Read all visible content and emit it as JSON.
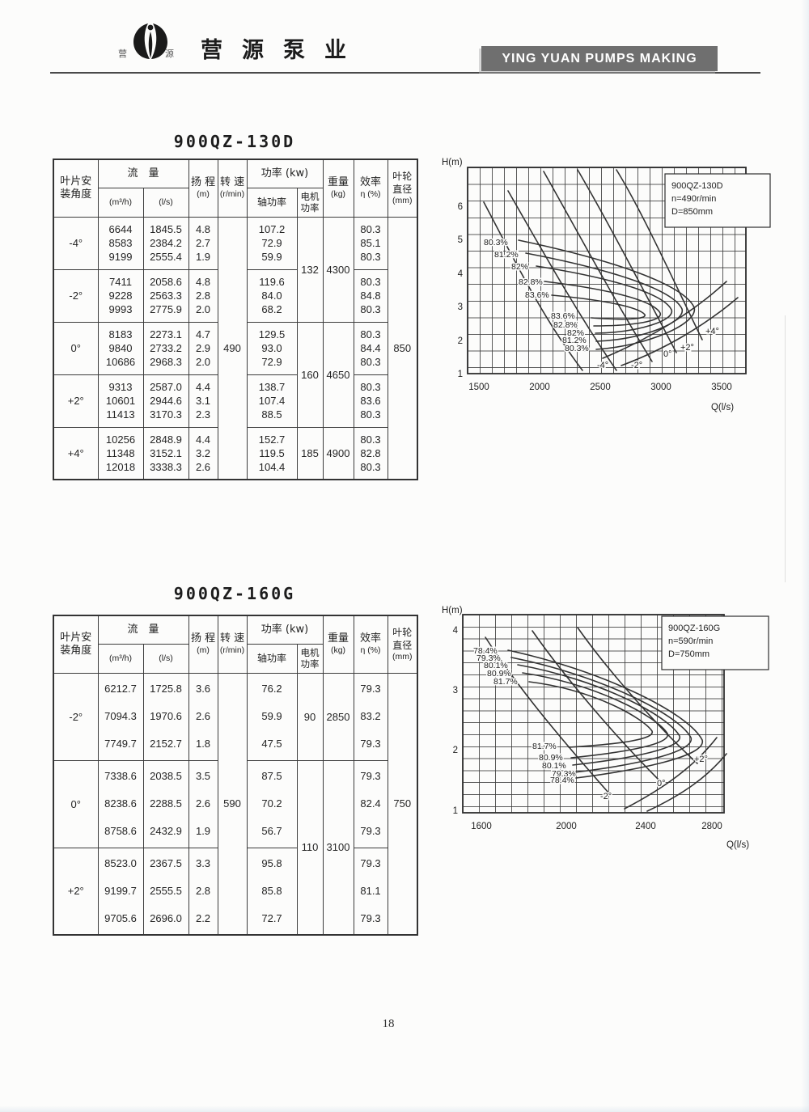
{
  "page": {
    "number": "18"
  },
  "header": {
    "logo": {
      "small_left": "营",
      "small_right": "源"
    },
    "company_name": "营源泵业",
    "banner": "YING YUAN PUMPS MAKING",
    "banner_bg": "#6f6f6f"
  },
  "column_headers": {
    "angle_l1": "叶片安",
    "angle_l2": "装角度",
    "flow": "流　量",
    "flow_m3h": "(m³/h)",
    "flow_ls": "(l/s)",
    "head_l1": "扬 程",
    "head_l2": "(m)",
    "speed_l1": "转 速",
    "speed_l2": "(r/min)",
    "power": "功率 (kw)",
    "shaft": "轴功率",
    "motor_l1": "电机",
    "motor_l2": "功率",
    "weight_l1": "重量",
    "weight_l2": "(kg)",
    "eff_l1": "效率",
    "eff_l2": "η (%)",
    "imp_l1": "叶轮",
    "imp_l2": "直径",
    "imp_l3": "(mm)"
  },
  "tables": [
    {
      "title": "900QZ-130D",
      "speed": "490",
      "impeller": "850",
      "groups": [
        {
          "angle": "-4°",
          "m3h": [
            "6644",
            "8583",
            "9199"
          ],
          "ls": [
            "1845.5",
            "2384.2",
            "2555.4"
          ],
          "head": [
            "4.8",
            "2.7",
            "1.9"
          ],
          "shaft": [
            "107.2",
            "72.9",
            "59.9"
          ],
          "eff": [
            "80.3",
            "85.1",
            "80.3"
          ]
        },
        {
          "angle": "-2°",
          "m3h": [
            "7411",
            "9228",
            "9993"
          ],
          "ls": [
            "2058.6",
            "2563.3",
            "2775.9"
          ],
          "head": [
            "4.8",
            "2.8",
            "2.0"
          ],
          "shaft": [
            "119.6",
            "84.0",
            "68.2"
          ],
          "eff": [
            "80.3",
            "84.8",
            "80.3"
          ]
        },
        {
          "angle": "0°",
          "m3h": [
            "8183",
            "9840",
            "10686"
          ],
          "ls": [
            "2273.1",
            "2733.2",
            "2968.3"
          ],
          "head": [
            "4.7",
            "2.9",
            "2.0"
          ],
          "shaft": [
            "129.5",
            "93.0",
            "72.9"
          ],
          "eff": [
            "80.3",
            "84.4",
            "80.3"
          ]
        },
        {
          "angle": "+2°",
          "m3h": [
            "9313",
            "10601",
            "11413"
          ],
          "ls": [
            "2587.0",
            "2944.6",
            "3170.3"
          ],
          "head": [
            "4.4",
            "3.1",
            "2.3"
          ],
          "shaft": [
            "138.7",
            "107.4",
            "88.5"
          ],
          "eff": [
            "80.3",
            "83.6",
            "80.3"
          ]
        },
        {
          "angle": "+4°",
          "m3h": [
            "10256",
            "11348",
            "12018"
          ],
          "ls": [
            "2848.9",
            "3152.1",
            "3338.3"
          ],
          "head": [
            "4.4",
            "3.2",
            "2.6"
          ],
          "shaft": [
            "152.7",
            "119.5",
            "104.4"
          ],
          "eff": [
            "80.3",
            "82.8",
            "80.3"
          ]
        }
      ],
      "motor_weight": [
        {
          "motor": "132",
          "weight": "4300"
        },
        {
          "motor": "160",
          "weight": "4650"
        },
        {
          "motor": "185",
          "weight": "4900"
        }
      ]
    },
    {
      "title": "900QZ-160G",
      "speed": "590",
      "impeller": "750",
      "groups": [
        {
          "angle": "-2°",
          "m3h": [
            "6212.7",
            "7094.3",
            "7749.7"
          ],
          "ls": [
            "1725.8",
            "1970.6",
            "2152.7"
          ],
          "head": [
            "3.6",
            "2.6",
            "1.8"
          ],
          "shaft": [
            "76.2",
            "59.9",
            "47.5"
          ],
          "eff": [
            "79.3",
            "83.2",
            "79.3"
          ]
        },
        {
          "angle": "0°",
          "m3h": [
            "7338.6",
            "8238.6",
            "8758.6"
          ],
          "ls": [
            "2038.5",
            "2288.5",
            "2432.9"
          ],
          "head": [
            "3.5",
            "2.6",
            "1.9"
          ],
          "shaft": [
            "87.5",
            "70.2",
            "56.7"
          ],
          "eff": [
            "79.3",
            "82.4",
            "79.3"
          ]
        },
        {
          "angle": "+2°",
          "m3h": [
            "8523.0",
            "9199.7",
            "9705.6"
          ],
          "ls": [
            "2367.5",
            "2555.5",
            "2696.0"
          ],
          "head": [
            "3.3",
            "2.8",
            "2.2"
          ],
          "shaft": [
            "95.8",
            "85.8",
            "72.7"
          ],
          "eff": [
            "79.3",
            "81.1",
            "79.3"
          ]
        }
      ],
      "motor_weight": [
        {
          "motor": "90",
          "weight": "2850"
        },
        {
          "motor": "110",
          "weight": "3100"
        }
      ]
    }
  ],
  "charts": [
    {
      "legend": [
        "900QZ-130D",
        "n=490r/min",
        "D=850mm"
      ],
      "y_axis": "H(m)",
      "x_axis": "Q(l/s)",
      "y_ticks": [
        "6",
        "5",
        "4",
        "3",
        "2",
        "1"
      ],
      "x_ticks": [
        "1500",
        "2000",
        "2500",
        "3000",
        "3500"
      ],
      "eff_upper": [
        "80.3%",
        "81.2%",
        "82%",
        "82.8%",
        "83.6%"
      ],
      "eff_lower": [
        "83.6%",
        "82.8%",
        "82%",
        "81.2%",
        "80.3%"
      ],
      "angle_labels": [
        "-4°",
        "-2°",
        "0°",
        "+2°",
        "+4°"
      ]
    },
    {
      "legend": [
        "900QZ-160G",
        "n=590r/min",
        "D=750mm"
      ],
      "y_axis": "H(m)",
      "x_axis": "Q(l/s)",
      "y_ticks": [
        "4",
        "3",
        "2",
        "1"
      ],
      "x_ticks": [
        "1600",
        "2000",
        "2400",
        "2800"
      ],
      "eff_upper": [
        "78.4%",
        "79.3%",
        "80.1%",
        "80.9%",
        "81.7%"
      ],
      "eff_lower": [
        "81.7%",
        "80.9%",
        "80.1%",
        "79.3%",
        "78.4%"
      ],
      "angle_labels": [
        "-2°",
        "0°",
        "+2°"
      ]
    }
  ],
  "chart_data": [
    {
      "type": "line",
      "title": "900QZ-130D",
      "xlabel": "Q(l/s)",
      "ylabel": "H(m)",
      "x_range": [
        1400,
        3700
      ],
      "y_range": [
        1,
        7
      ],
      "grid": true,
      "legend_position": "top-right",
      "annotations": [
        "n=490r/min",
        "D=850mm"
      ],
      "series": [
        {
          "name": "-4°",
          "points": [
            [
              1845.5,
              4.8
            ],
            [
              2384.2,
              2.7
            ],
            [
              2555.4,
              1.9
            ]
          ]
        },
        {
          "name": "-2°",
          "points": [
            [
              2058.6,
              4.8
            ],
            [
              2563.3,
              2.8
            ],
            [
              2775.9,
              2.0
            ]
          ]
        },
        {
          "name": "0°",
          "points": [
            [
              2273.1,
              4.7
            ],
            [
              2733.2,
              2.9
            ],
            [
              2968.3,
              2.0
            ]
          ]
        },
        {
          "name": "+2°",
          "points": [
            [
              2587.0,
              4.4
            ],
            [
              2944.6,
              3.1
            ],
            [
              3170.3,
              2.3
            ]
          ]
        },
        {
          "name": "+4°",
          "points": [
            [
              2848.9,
              4.4
            ],
            [
              3152.1,
              3.2
            ],
            [
              3338.3,
              2.6
            ]
          ]
        }
      ],
      "efficiency_contours_percent": [
        80.3,
        81.2,
        82,
        82.8,
        83.6
      ]
    },
    {
      "type": "line",
      "title": "900QZ-160G",
      "xlabel": "Q(l/s)",
      "ylabel": "H(m)",
      "x_range": [
        1500,
        2860
      ],
      "y_range": [
        1,
        4.3
      ],
      "grid": true,
      "legend_position": "top-right",
      "annotations": [
        "n=590r/min",
        "D=750mm"
      ],
      "series": [
        {
          "name": "-2°",
          "points": [
            [
              1725.8,
              3.6
            ],
            [
              1970.6,
              2.6
            ],
            [
              2152.7,
              1.8
            ]
          ]
        },
        {
          "name": "0°",
          "points": [
            [
              2038.5,
              3.5
            ],
            [
              2288.5,
              2.6
            ],
            [
              2432.9,
              1.9
            ]
          ]
        },
        {
          "name": "+2°",
          "points": [
            [
              2367.5,
              3.3
            ],
            [
              2555.5,
              2.8
            ],
            [
              2696.0,
              2.2
            ]
          ]
        }
      ],
      "efficiency_contours_percent": [
        78.4,
        79.3,
        80.1,
        80.9,
        81.7
      ]
    }
  ]
}
